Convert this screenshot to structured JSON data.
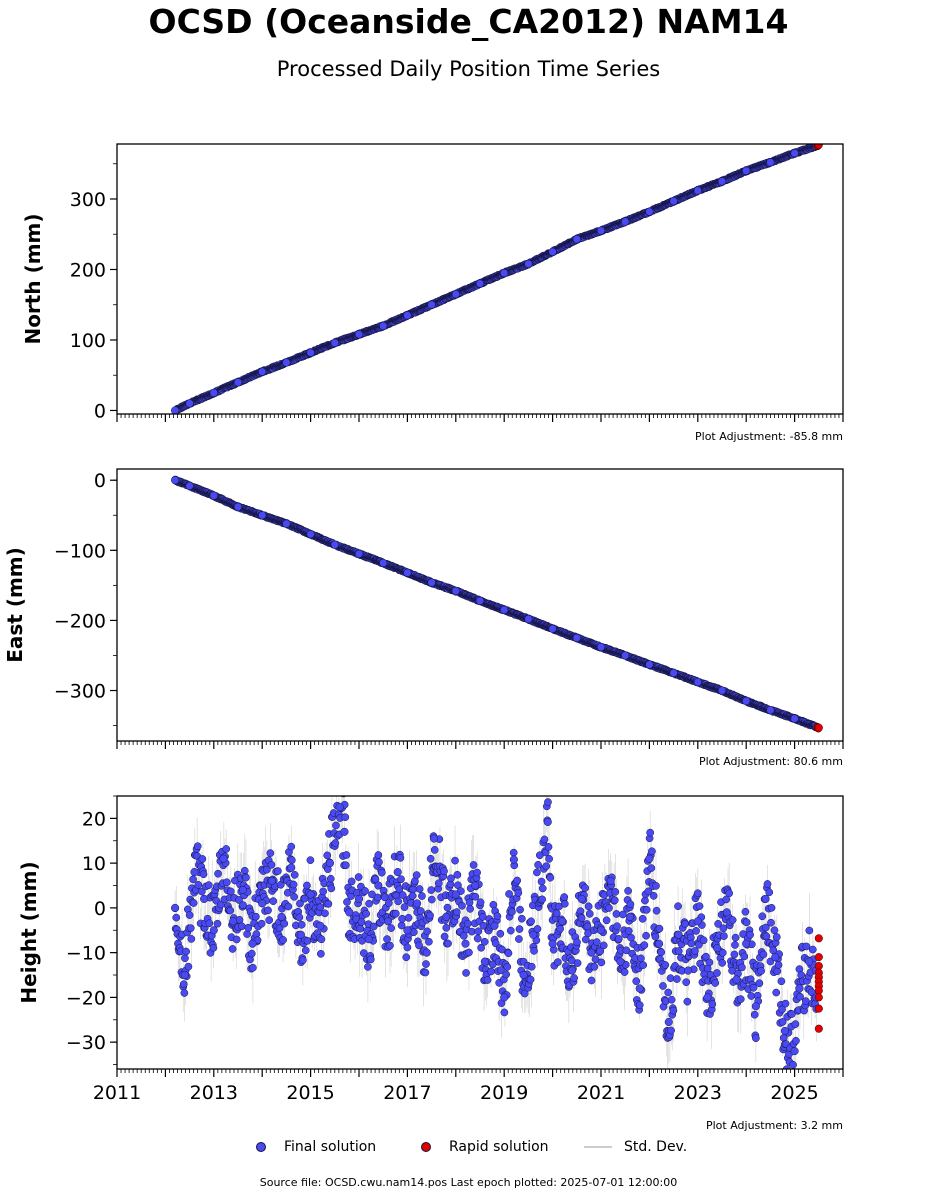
{
  "title": "OCSD (Oceanside_CA2012) NAM14",
  "subtitle": "Processed Daily Position Time Series",
  "chart_data": [
    {
      "type": "scatter",
      "ylabel": "North (mm)",
      "adjustment_label": "Plot Adjustment: -85.8 mm",
      "xlim": [
        2011.0,
        2026.0
      ],
      "ylim": [
        -5,
        378
      ],
      "yticks": [
        0,
        100,
        200,
        300
      ],
      "ytick_labels": [
        "0",
        "100",
        "200",
        "300"
      ],
      "series": [
        {
          "name": "Final solution",
          "color": "#4a4af5",
          "x": [
            2012.2,
            2012.5,
            2013.0,
            2013.5,
            2014.0,
            2014.5,
            2015.0,
            2015.5,
            2016.0,
            2016.5,
            2017.0,
            2017.5,
            2018.0,
            2018.5,
            2019.0,
            2019.5,
            2020.0,
            2020.5,
            2021.0,
            2021.5,
            2022.0,
            2022.5,
            2023.0,
            2023.5,
            2024.0,
            2024.5,
            2025.0,
            2025.45
          ],
          "y": [
            0,
            10,
            25,
            40,
            55,
            68,
            82,
            96,
            108,
            120,
            135,
            150,
            165,
            180,
            195,
            208,
            225,
            243,
            255,
            268,
            282,
            297,
            312,
            325,
            340,
            352,
            365,
            375
          ]
        },
        {
          "name": "Rapid solution",
          "color": "#e00000",
          "x": [
            2025.47,
            2025.48,
            2025.49,
            2025.5
          ],
          "y": [
            375,
            376,
            376,
            377
          ]
        }
      ]
    },
    {
      "type": "scatter",
      "ylabel": "East (mm)",
      "adjustment_label": "Plot Adjustment: 80.6 mm",
      "xlim": [
        2011.0,
        2026.0
      ],
      "ylim": [
        -372,
        16
      ],
      "yticks": [
        0,
        -100,
        -200,
        -300
      ],
      "ytick_labels": [
        "0",
        "−100",
        "−200",
        "−300"
      ],
      "series": [
        {
          "name": "Final solution",
          "color": "#4a4af5",
          "x": [
            2012.2,
            2012.5,
            2013.0,
            2013.5,
            2014.0,
            2014.5,
            2015.0,
            2015.5,
            2016.0,
            2016.5,
            2017.0,
            2017.5,
            2018.0,
            2018.5,
            2019.0,
            2019.5,
            2020.0,
            2020.5,
            2021.0,
            2021.5,
            2022.0,
            2022.5,
            2023.0,
            2023.5,
            2024.0,
            2024.5,
            2025.0,
            2025.45
          ],
          "y": [
            0,
            -8,
            -22,
            -38,
            -50,
            -62,
            -77,
            -92,
            -105,
            -118,
            -132,
            -146,
            -158,
            -172,
            -185,
            -198,
            -212,
            -225,
            -238,
            -250,
            -263,
            -275,
            -288,
            -300,
            -315,
            -328,
            -340,
            -352
          ]
        },
        {
          "name": "Rapid solution",
          "color": "#e00000",
          "x": [
            2025.47,
            2025.48,
            2025.49,
            2025.5
          ],
          "y": [
            -352,
            -353,
            -354,
            -353
          ]
        }
      ]
    },
    {
      "type": "scatter",
      "ylabel": "Height (mm)",
      "adjustment_label": "Plot Adjustment: 3.2 mm",
      "xlim": [
        2011.0,
        2026.0
      ],
      "ylim": [
        -36,
        25
      ],
      "yticks": [
        20,
        10,
        0,
        -10,
        -20,
        -30
      ],
      "ytick_labels": [
        "20",
        "10",
        "0",
        "−10",
        "−20",
        "−30"
      ],
      "xticks": [
        2011,
        2013,
        2015,
        2017,
        2019,
        2021,
        2023,
        2025
      ],
      "xtick_labels": [
        "2011",
        "2013",
        "2015",
        "2017",
        "2019",
        "2021",
        "2023",
        "2025"
      ],
      "series": [
        {
          "name": "Final solution",
          "color": "#4a4af5",
          "x": [
            2012.2,
            2012.4,
            2012.6,
            2012.8,
            2013.0,
            2013.2,
            2013.4,
            2013.6,
            2013.8,
            2014.0,
            2014.2,
            2014.4,
            2014.6,
            2014.8,
            2015.0,
            2015.2,
            2015.4,
            2015.6,
            2015.7,
            2015.8,
            2016.0,
            2016.2,
            2016.4,
            2016.6,
            2016.8,
            2017.0,
            2017.2,
            2017.4,
            2017.55,
            2017.8,
            2018.0,
            2018.2,
            2018.4,
            2018.6,
            2018.8,
            2019.0,
            2019.2,
            2019.4,
            2019.6,
            2019.9,
            2020.0,
            2020.2,
            2020.4,
            2020.6,
            2020.8,
            2021.0,
            2021.2,
            2021.4,
            2021.6,
            2021.8,
            2022.0,
            2022.2,
            2022.4,
            2022.6,
            2022.8,
            2023.0,
            2023.2,
            2023.4,
            2023.6,
            2023.8,
            2024.0,
            2024.2,
            2024.4,
            2024.6,
            2024.8,
            2025.0,
            2025.1,
            2025.3,
            2025.45
          ],
          "y": [
            0,
            -15,
            8,
            2,
            -5,
            11,
            -3,
            4,
            -8,
            1,
            6,
            -2,
            9,
            -6,
            3,
            -4,
            10,
            22.5,
            17,
            -1,
            2,
            -7,
            5,
            -3,
            8,
            -5,
            1,
            -10,
            15.5,
            -2,
            3,
            -8,
            5,
            -12,
            -4,
            -20,
            10.8,
            -15,
            -6,
            19.2,
            -8,
            -3,
            -14,
            2,
            -10,
            -5,
            6,
            -12,
            -2,
            -18,
            11,
            -8,
            -25.5,
            -6,
            -14,
            -3,
            -20,
            -9,
            -1,
            -16,
            -8,
            -22,
            2,
            -11,
            -27.5,
            -32,
            -18,
            -12,
            -20
          ]
        },
        {
          "name": "Rapid solution",
          "color": "#e00000",
          "x": [
            2025.5,
            2025.5,
            2025.5,
            2025.5,
            2025.5,
            2025.5,
            2025.5,
            2025.5,
            2025.5,
            2025.5,
            2025.5
          ],
          "y": [
            -6.8,
            -11,
            -13,
            -14.5,
            -15.5,
            -16.5,
            -17.5,
            -18.5,
            -20,
            -22.5,
            -27
          ]
        }
      ]
    }
  ],
  "legend": {
    "items": [
      {
        "label": "Final solution",
        "color": "#4a4af5"
      },
      {
        "label": "Rapid solution",
        "color": "#e00000"
      },
      {
        "label": "Std. Dev.",
        "color": "#cccccc"
      }
    ]
  },
  "footer": {
    "source": "Source file: OCSD.cwu.nam14.pos  Last epoch plotted: 2025-07-01 12:00:00"
  }
}
